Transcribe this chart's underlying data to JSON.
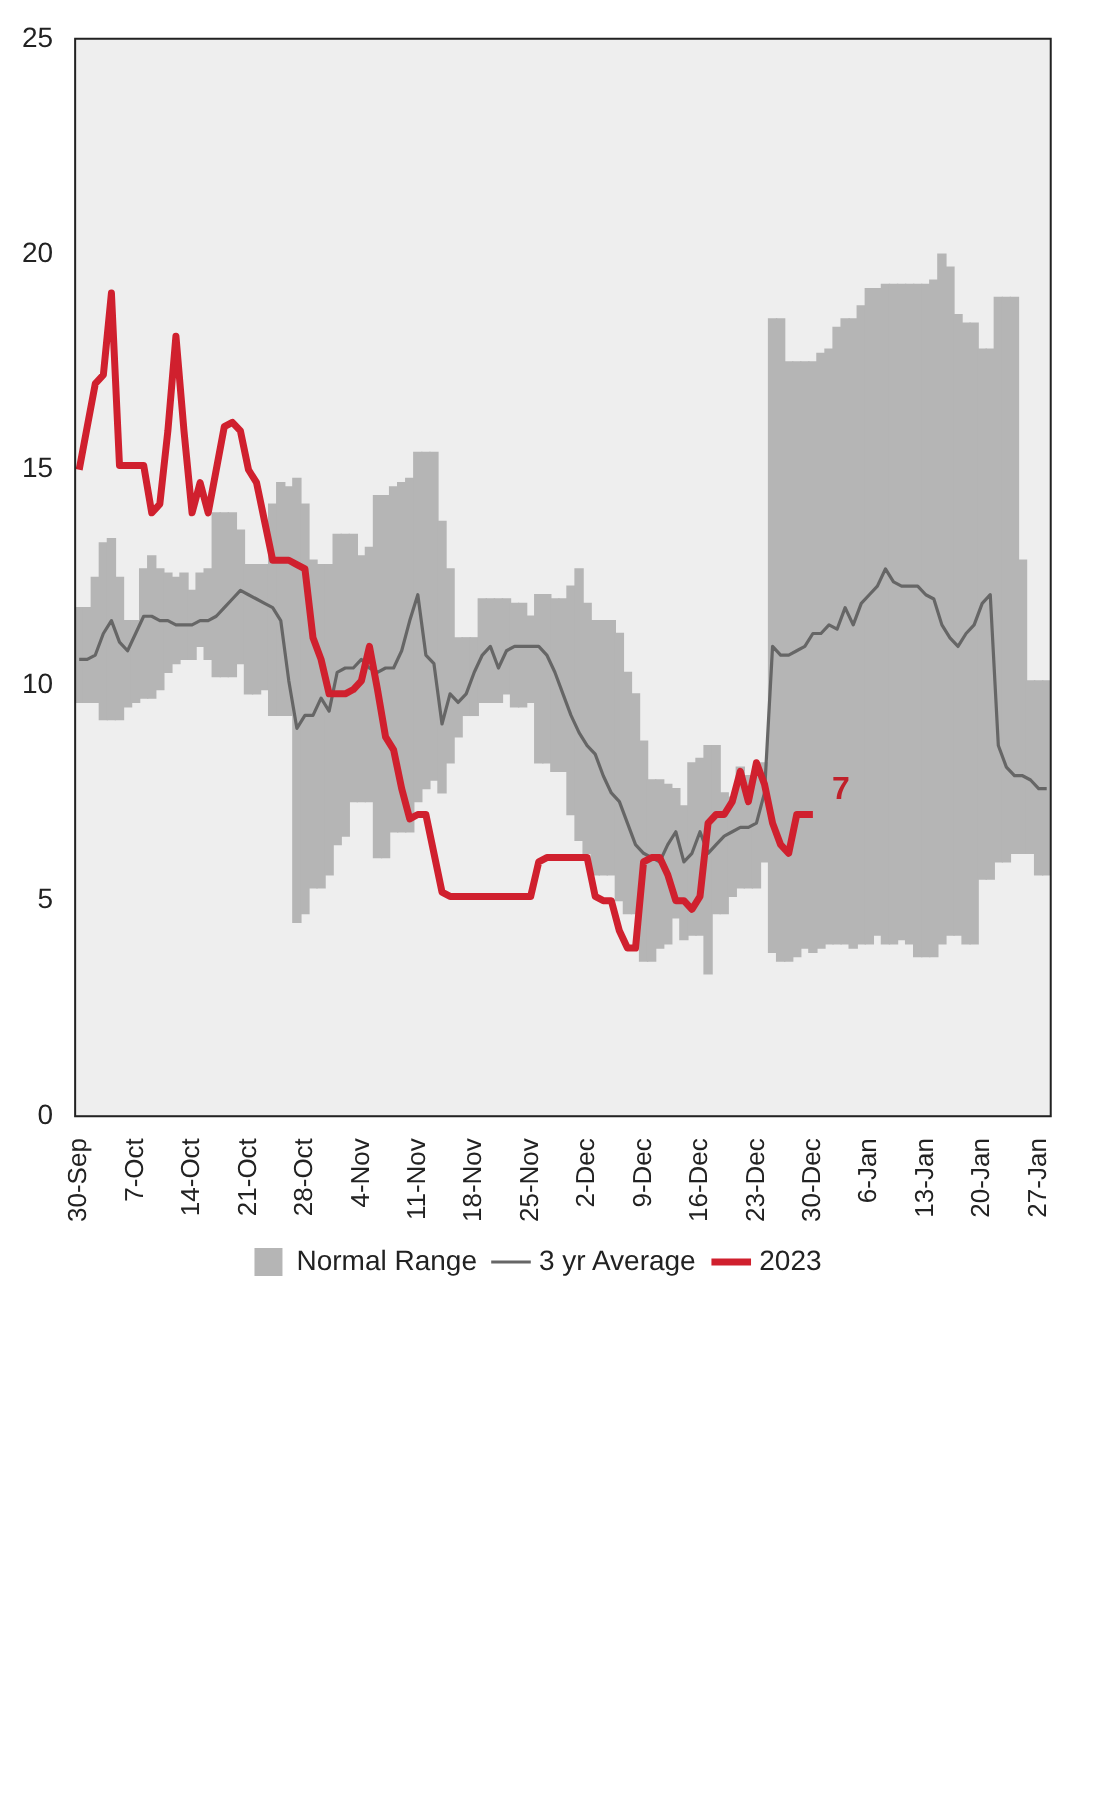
{
  "chart_data": {
    "type": "line",
    "categories": [
      "30-Sep",
      null,
      null,
      null,
      null,
      null,
      null,
      "7-Oct",
      null,
      null,
      null,
      null,
      null,
      null,
      "14-Oct",
      null,
      null,
      null,
      null,
      null,
      null,
      "21-Oct",
      null,
      null,
      null,
      null,
      null,
      null,
      "28-Oct",
      null,
      null,
      null,
      null,
      null,
      null,
      "4-Nov",
      null,
      null,
      null,
      null,
      null,
      null,
      "11-Nov",
      null,
      null,
      null,
      null,
      null,
      null,
      "18-Nov",
      null,
      null,
      null,
      null,
      null,
      null,
      "25-Nov",
      null,
      null,
      null,
      null,
      null,
      null,
      "2-Dec",
      null,
      null,
      null,
      null,
      null,
      null,
      "9-Dec",
      null,
      null,
      null,
      null,
      null,
      null,
      "16-Dec",
      null,
      null,
      null,
      null,
      null,
      null,
      "23-Dec",
      null,
      null,
      null,
      null,
      null,
      null,
      "30-Dec",
      null,
      null,
      null,
      null,
      null,
      null,
      "6-Jan",
      null,
      null,
      null,
      null,
      null,
      null,
      "13-Jan",
      null,
      null,
      null,
      null,
      null,
      null,
      "20-Jan",
      null,
      null,
      null,
      null,
      null,
      null,
      "27-Jan",
      null
    ],
    "series": [
      {
        "name": "Normal Range",
        "type": "bar",
        "color": "#b5b5b5",
        "base": [
          9.6,
          9.6,
          9.6,
          9.2,
          9.2,
          9.2,
          9.5,
          9.6,
          9.7,
          9.7,
          9.9,
          10.3,
          10.5,
          10.6,
          10.6,
          10.9,
          10.6,
          10.2,
          10.2,
          10.2,
          10.5,
          9.8,
          9.8,
          9.9,
          9.3,
          9.3,
          9.3,
          4.5,
          4.7,
          5.3,
          5.3,
          5.6,
          6.3,
          6.5,
          7.3,
          7.3,
          7.3,
          6.0,
          6.0,
          6.6,
          6.6,
          6.6,
          7.3,
          7.6,
          7.8,
          7.5,
          8.2,
          8.8,
          9.3,
          9.3,
          9.6,
          9.6,
          9.6,
          9.8,
          9.5,
          9.5,
          9.6,
          8.2,
          8.2,
          8.0,
          8.0,
          7.0,
          6.4,
          6.1,
          5.6,
          5.6,
          5.6,
          5.0,
          4.7,
          4.7,
          3.6,
          3.6,
          3.9,
          4.0,
          4.6,
          4.1,
          4.2,
          4.2,
          3.3,
          4.7,
          4.7,
          5.1,
          5.3,
          5.3,
          5.3,
          5.9,
          3.8,
          3.6,
          3.6,
          3.7,
          3.9,
          3.8,
          3.9,
          4.0,
          4.0,
          4.0,
          3.9,
          4.0,
          4.0,
          4.2,
          4.0,
          4.0,
          4.1,
          4.0,
          3.7,
          3.7,
          3.7,
          4.0,
          4.2,
          4.2,
          4.0,
          4.0,
          5.5,
          5.5,
          5.9,
          5.9,
          6.1,
          6.1,
          6.1,
          5.6,
          5.6
        ],
        "values": [
          2.2,
          2.2,
          2.9,
          4.1,
          4.2,
          3.3,
          2.0,
          1.9,
          3.0,
          3.3,
          2.8,
          2.3,
          2.0,
          2.0,
          1.6,
          1.7,
          2.1,
          3.8,
          3.8,
          3.8,
          3.1,
          3.0,
          3.0,
          2.9,
          4.9,
          5.4,
          5.3,
          10.3,
          9.5,
          7.6,
          7.5,
          7.2,
          7.2,
          7.0,
          6.2,
          5.7,
          5.9,
          8.4,
          8.4,
          8.0,
          8.1,
          8.2,
          8.1,
          7.8,
          7.6,
          6.3,
          4.5,
          2.3,
          1.8,
          1.8,
          2.4,
          2.4,
          2.4,
          2.2,
          2.4,
          2.4,
          2.0,
          3.9,
          3.9,
          4.0,
          4.0,
          5.3,
          6.3,
          5.8,
          5.9,
          5.9,
          5.9,
          6.2,
          5.6,
          5.1,
          5.1,
          4.2,
          3.9,
          3.7,
          3.0,
          3.1,
          4.0,
          4.1,
          5.3,
          3.9,
          2.8,
          2.3,
          2.8,
          2.6,
          2.6,
          2.3,
          14.7,
          14.9,
          13.9,
          13.8,
          13.6,
          13.7,
          13.8,
          13.8,
          14.3,
          14.5,
          14.6,
          14.8,
          15.2,
          15.0,
          15.3,
          15.3,
          15.2,
          15.3,
          15.6,
          15.6,
          15.7,
          16.0,
          15.5,
          14.4,
          14.4,
          14.4,
          12.3,
          12.3,
          13.1,
          13.1,
          12.9,
          6.8,
          4.0,
          4.5,
          4.5
        ]
      },
      {
        "name": "3 yr Average",
        "color": "#666666",
        "values": [
          10.6,
          10.6,
          10.7,
          11.2,
          11.5,
          11.0,
          10.8,
          11.2,
          11.6,
          11.6,
          11.5,
          11.5,
          11.4,
          11.4,
          11.4,
          11.5,
          11.5,
          11.6,
          11.8,
          12.0,
          12.2,
          12.1,
          12.0,
          11.9,
          11.8,
          11.5,
          10.1,
          9.0,
          9.3,
          9.3,
          9.7,
          9.4,
          10.3,
          10.4,
          10.4,
          10.6,
          10.4,
          10.3,
          10.4,
          10.4,
          10.8,
          11.5,
          12.1,
          10.7,
          10.5,
          9.1,
          9.8,
          9.6,
          9.8,
          10.3,
          10.7,
          10.9,
          10.4,
          10.8,
          10.9,
          10.9,
          10.9,
          10.9,
          10.7,
          10.3,
          9.8,
          9.3,
          8.9,
          8.6,
          8.4,
          7.9,
          7.5,
          7.3,
          6.8,
          6.3,
          6.1,
          6.0,
          5.9,
          6.3,
          6.6,
          5.9,
          6.1,
          6.6,
          6.1,
          6.3,
          6.5,
          6.6,
          6.7,
          6.7,
          6.8,
          7.5,
          10.9,
          10.7,
          10.7,
          10.8,
          10.9,
          11.2,
          11.2,
          11.4,
          11.3,
          11.8,
          11.4,
          11.9,
          12.1,
          12.3,
          12.7,
          12.4,
          12.3,
          12.3,
          12.3,
          12.1,
          12.0,
          11.4,
          11.1,
          10.9,
          11.2,
          11.4,
          11.9,
          12.1,
          8.6,
          8.1,
          7.9,
          7.9,
          7.8,
          7.6,
          7.6
        ]
      },
      {
        "name": "2023",
        "color": "#d0202e",
        "values": [
          15.0,
          16.0,
          17.0,
          17.2,
          19.1,
          15.1,
          15.1,
          15.1,
          15.1,
          14.0,
          14.2,
          15.9,
          18.1,
          15.9,
          14.0,
          14.7,
          14.0,
          15.0,
          16.0,
          16.1,
          15.9,
          15.0,
          14.7,
          13.8,
          12.9,
          12.9,
          12.9,
          12.8,
          12.7,
          11.1,
          10.6,
          9.8,
          9.8,
          9.8,
          9.9,
          10.1,
          10.9,
          9.9,
          8.8,
          8.5,
          7.6,
          6.9,
          7.0,
          7.0,
          6.1,
          5.2,
          5.1,
          5.1,
          5.1,
          5.1,
          5.1,
          5.1,
          5.1,
          5.1,
          5.1,
          5.1,
          5.1,
          5.9,
          6.0,
          6.0,
          6.0,
          6.0,
          6.0,
          6.0,
          5.1,
          5.0,
          5.0,
          4.3,
          3.9,
          3.9,
          5.9,
          6.0,
          6.0,
          5.6,
          5.0,
          5.0,
          4.8,
          5.1,
          6.8,
          7.0,
          7.0,
          7.3,
          8.0,
          7.3,
          8.2,
          7.7,
          6.8,
          6.3,
          6.1,
          7.0,
          7.0,
          7,
          null,
          null,
          null,
          null,
          null,
          null,
          null,
          null,
          null,
          null,
          null,
          null,
          null,
          null,
          null,
          null,
          null,
          null,
          null,
          null,
          null,
          null,
          null,
          null,
          null,
          null,
          null,
          null,
          null
        ]
      }
    ],
    "ylim": [
      0,
      25
    ],
    "yticks": [
      0,
      5,
      10,
      15,
      20,
      25
    ],
    "annotations": [
      {
        "text": "7",
        "x": "30-Dec",
        "y": 7
      }
    ],
    "grid": false,
    "legend": "bottom",
    "marker": "none"
  }
}
